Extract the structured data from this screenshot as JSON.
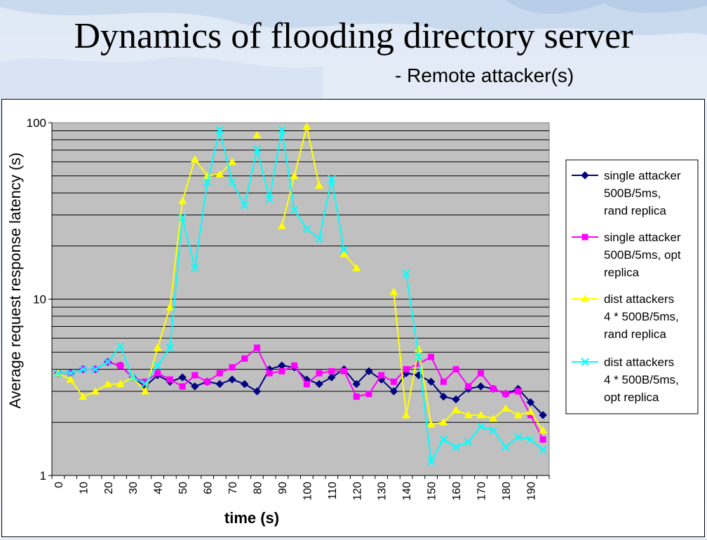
{
  "slide": {
    "title": "Dynamics of flooding directory server",
    "subtitle": "- Remote attacker(s)"
  },
  "colors": {
    "plot_background": "#c0c0c0",
    "single_rand": "#000080",
    "single_opt": "#ff00ff",
    "dist_rand": "#ffff00",
    "dist_opt": "#00ffff"
  },
  "chart_data": {
    "type": "line",
    "xlabel": "time (s)",
    "ylabel": "Average request response latency (s)",
    "yscale": "log",
    "ylim": [
      1,
      100
    ],
    "xlim": [
      0,
      195
    ],
    "ytick_labels": [
      "1",
      "10",
      "100"
    ],
    "xtick_labels": [
      "0",
      "10",
      "20",
      "30",
      "40",
      "50",
      "60",
      "70",
      "80",
      "90",
      "100",
      "110",
      "120",
      "130",
      "140",
      "150",
      "160",
      "170",
      "180",
      "190"
    ],
    "grid": true,
    "legend_position": "right",
    "series": [
      {
        "name": "single attacker 500B/5ms, rand replica",
        "marker": "diamond",
        "x": [
          0,
          5,
          10,
          15,
          20,
          25,
          30,
          35,
          40,
          45,
          50,
          55,
          60,
          65,
          70,
          75,
          80,
          85,
          90,
          95,
          100,
          105,
          110,
          115,
          120,
          125,
          130,
          135,
          140,
          145,
          150,
          155,
          160,
          165,
          170,
          175,
          180,
          185,
          190,
          195
        ],
        "y": [
          3.8,
          3.8,
          4.0,
          4.0,
          4.4,
          4.2,
          3.6,
          3.2,
          3.7,
          3.4,
          3.6,
          3.2,
          3.4,
          3.3,
          3.5,
          3.3,
          3.0,
          4.0,
          4.2,
          4.1,
          3.5,
          3.3,
          3.6,
          4.0,
          3.3,
          3.9,
          3.5,
          3.0,
          3.8,
          3.7,
          3.4,
          2.8,
          2.7,
          3.1,
          3.2,
          3.1,
          2.9,
          3.1,
          2.6,
          2.2
        ]
      },
      {
        "name": "single attacker 500B/5ms, opt replica",
        "marker": "square",
        "x": [
          0,
          5,
          10,
          15,
          20,
          25,
          30,
          35,
          40,
          45,
          50,
          55,
          60,
          65,
          70,
          75,
          80,
          85,
          90,
          95,
          100,
          105,
          110,
          115,
          120,
          125,
          130,
          135,
          140,
          145,
          150,
          155,
          160,
          165,
          170,
          175,
          180,
          185,
          190,
          195
        ],
        "y": [
          3.8,
          3.8,
          4.0,
          4.0,
          4.4,
          4.2,
          3.6,
          3.4,
          3.8,
          3.5,
          3.2,
          3.7,
          3.4,
          3.8,
          4.1,
          4.6,
          5.3,
          3.8,
          3.9,
          4.2,
          3.3,
          3.8,
          3.9,
          3.9,
          2.8,
          2.9,
          3.7,
          3.4,
          4.0,
          4.3,
          4.7,
          3.4,
          4.0,
          3.2,
          3.8,
          3.1,
          2.9,
          3.0,
          2.2,
          1.6
        ]
      },
      {
        "name": "dist attackers 4 * 500B/5ms, rand replica",
        "marker": "triangle",
        "x": [
          0,
          5,
          10,
          15,
          20,
          25,
          30,
          35,
          40,
          45,
          50,
          55,
          60,
          65,
          70,
          null,
          80,
          null,
          90,
          95,
          100,
          105,
          null,
          115,
          120,
          null,
          135,
          140,
          145,
          150,
          155,
          160,
          165,
          170,
          175,
          180,
          185,
          190,
          195
        ],
        "y": [
          3.8,
          3.5,
          2.8,
          3.0,
          3.3,
          3.3,
          3.6,
          3.0,
          5.3,
          9.0,
          36,
          62,
          50,
          51,
          60,
          null,
          85,
          null,
          26,
          50,
          95,
          44,
          null,
          18,
          15,
          null,
          11,
          2.2,
          5.2,
          1.95,
          2.0,
          2.35,
          2.2,
          2.2,
          2.1,
          2.4,
          2.2,
          2.3,
          1.8
        ]
      },
      {
        "name": "dist attackers 4 * 500B/5ms, opt replica",
        "marker": "x",
        "x": [
          0,
          5,
          10,
          15,
          20,
          25,
          30,
          35,
          40,
          45,
          50,
          55,
          60,
          65,
          70,
          75,
          80,
          85,
          90,
          95,
          100,
          105,
          110,
          115,
          null,
          140,
          145,
          150,
          155,
          160,
          165,
          170,
          175,
          180,
          185,
          190,
          195
        ],
        "y": [
          3.8,
          3.8,
          4.0,
          4.0,
          4.4,
          5.4,
          3.6,
          3.3,
          4.2,
          5.3,
          29,
          15,
          46,
          91,
          46,
          34,
          71,
          37,
          91,
          32,
          25,
          22,
          48,
          19,
          null,
          14,
          4.7,
          1.2,
          1.6,
          1.45,
          1.55,
          1.9,
          1.8,
          1.45,
          1.65,
          1.6,
          1.4
        ]
      }
    ],
    "legend": [
      [
        "single attacker",
        "500B/5ms,",
        "rand replica"
      ],
      [
        "single attacker",
        "500B/5ms, opt",
        "replica"
      ],
      [
        "dist attackers",
        "4 * 500B/5ms,",
        "rand replica"
      ],
      [
        "dist attackers",
        "4 * 500B/5ms,",
        "opt replica"
      ]
    ]
  }
}
